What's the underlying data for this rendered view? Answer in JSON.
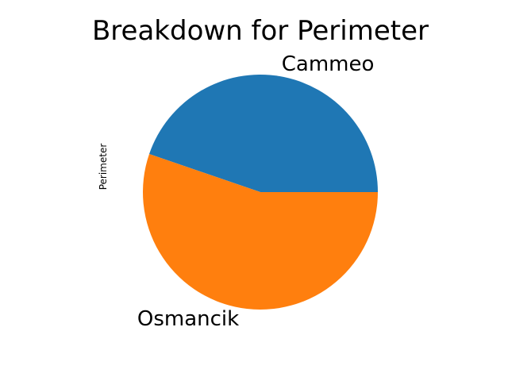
{
  "chart_data": {
    "type": "pie",
    "title": "Breakdown for Perimeter",
    "ylabel": "Perimeter",
    "xlabel": "",
    "categories": [
      "Cammeo",
      "Osmancik"
    ],
    "values": [
      0.4474,
      0.5526
    ],
    "colors": [
      "#1f77b4",
      "#ff7f0e"
    ],
    "start_angle_deg": 0,
    "direction": "counterclockwise",
    "legend": "none"
  }
}
